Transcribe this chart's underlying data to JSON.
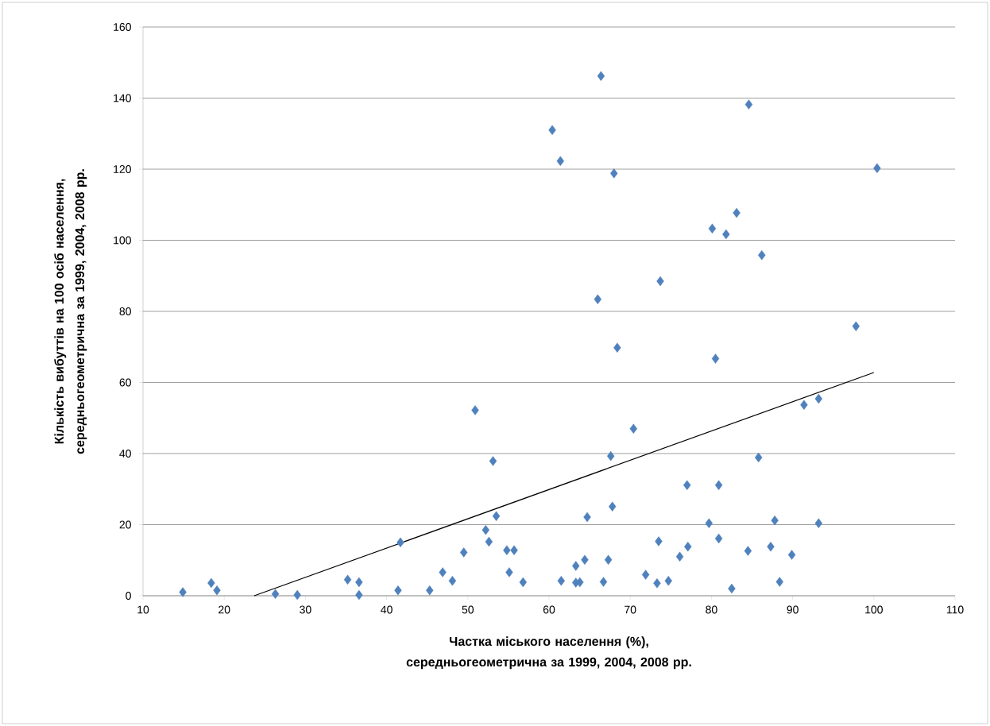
{
  "chart_data": {
    "type": "scatter",
    "xlabel": "Частка міського населення (%), середньогеометрична за 1999, 2004, 2008 рр.",
    "ylabel": "Кількість вибуттів на 100 осіб населення, середньогеометрична за 1999, 2004, 2008 рр.",
    "xlim": [
      10,
      110
    ],
    "ylim": [
      0,
      160
    ],
    "xticks": [
      10,
      20,
      30,
      40,
      50,
      60,
      70,
      80,
      90,
      100,
      110
    ],
    "yticks": [
      0,
      20,
      40,
      60,
      80,
      100,
      120,
      140,
      160
    ],
    "grid": "y",
    "series": [
      {
        "marker": "diamond",
        "color": "#4f81bd",
        "x": [
          14.9,
          18.4,
          19.1,
          26.3,
          29.0,
          35.2,
          36.6,
          36.6,
          41.7,
          41.4,
          45.3,
          46.9,
          48.1,
          49.5,
          50.9,
          53.1,
          53.5,
          52.2,
          52.6,
          54.8,
          55.7,
          55.1,
          56.8,
          61.5,
          63.3,
          63.8,
          63.3,
          64.4,
          64.7,
          66.7,
          67.3,
          67.6,
          67.8,
          70.4,
          71.9,
          73.3,
          73.5,
          74.7,
          76.1,
          77.1,
          77.0,
          79.7,
          80.9,
          80.9,
          82.5,
          84.5,
          85.8,
          87.3,
          87.8,
          88.4,
          89.9,
          91.4,
          93.2,
          93.2,
          66.4,
          84.6,
          60.4,
          61.4,
          68.0,
          100.4,
          83.1,
          80.1,
          81.8,
          86.2,
          73.7,
          66.0,
          97.8,
          68.4,
          80.5
        ],
        "values": [
          1.0,
          3.6,
          1.5,
          0.5,
          0.2,
          4.5,
          3.8,
          0.2,
          15.0,
          1.5,
          1.5,
          6.6,
          4.2,
          12.2,
          52.2,
          37.9,
          22.4,
          18.5,
          15.2,
          12.8,
          12.8,
          6.6,
          3.8,
          4.2,
          3.7,
          3.8,
          8.4,
          10.1,
          22.1,
          3.9,
          10.1,
          39.3,
          25.1,
          47.0,
          5.9,
          3.5,
          15.3,
          4.2,
          11.0,
          13.8,
          31.1,
          20.4,
          16.1,
          31.1,
          2.0,
          12.6,
          38.9,
          13.8,
          21.2,
          3.9,
          11.5,
          53.7,
          55.4,
          20.4,
          146.2,
          138.2,
          131.0,
          122.3,
          118.8,
          120.3,
          107.7,
          103.3,
          101.7,
          95.8,
          88.5,
          83.4,
          75.8,
          69.8,
          66.7
        ]
      },
      {
        "type": "line",
        "marker": "none",
        "color": "#000000",
        "x": [
          23.7,
          100
        ],
        "values": [
          0,
          62.8
        ]
      }
    ]
  }
}
